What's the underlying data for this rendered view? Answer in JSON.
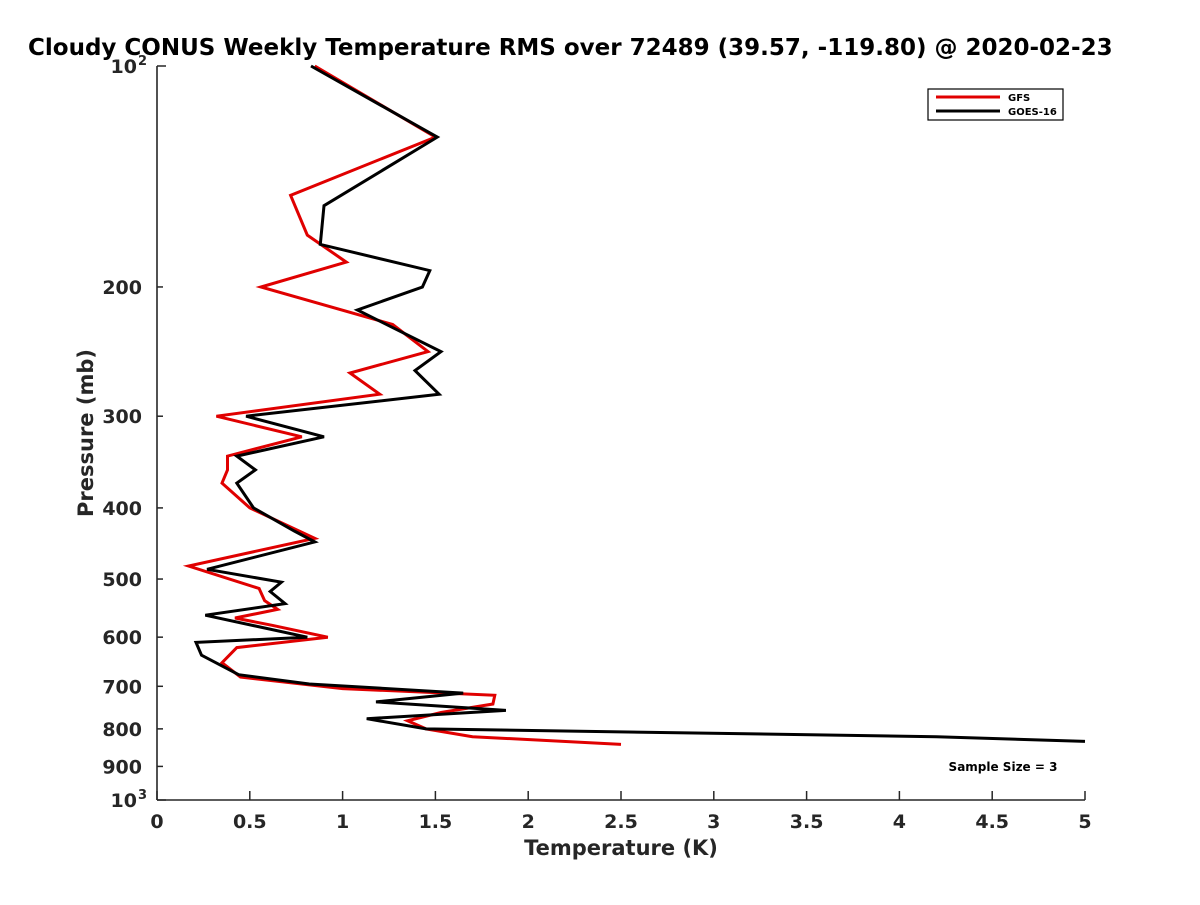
{
  "chart_data": {
    "type": "line",
    "title": "Cloudy CONUS Weekly Temperature RMS over 72489 (39.57, -119.80) @ 2020-02-23",
    "xlabel": "Temperature (K)",
    "ylabel": "Pressure (mb)",
    "xlim": [
      0,
      5
    ],
    "ylim": [
      100,
      1000
    ],
    "yscale": "log",
    "y_reversed": true,
    "grid": false,
    "legend_position": "top-right",
    "x_ticks": [
      "0",
      "0.5",
      "1",
      "1.5",
      "2",
      "2.5",
      "3",
      "3.5",
      "4",
      "4.5",
      "5"
    ],
    "y_ticks": [
      {
        "value": 100,
        "base": "10",
        "exp": "2"
      },
      {
        "value": 200,
        "label": "200"
      },
      {
        "value": 300,
        "label": "300"
      },
      {
        "value": 400,
        "label": "400"
      },
      {
        "value": 500,
        "label": "500"
      },
      {
        "value": 600,
        "label": "600"
      },
      {
        "value": 700,
        "label": "700"
      },
      {
        "value": 800,
        "label": "800"
      },
      {
        "value": 900,
        "label": "900"
      },
      {
        "value": 1000,
        "base": "10",
        "exp": "3"
      }
    ],
    "annotation": "Sample Size = 3",
    "series": [
      {
        "name": "GFS",
        "color": "#e00000",
        "points": [
          [
            0.85,
            100
          ],
          [
            1.5,
            125
          ],
          [
            0.72,
            150
          ],
          [
            0.81,
            170
          ],
          [
            1.02,
            185
          ],
          [
            0.56,
            200
          ],
          [
            1.27,
            225
          ],
          [
            1.46,
            245
          ],
          [
            1.04,
            262
          ],
          [
            1.2,
            280
          ],
          [
            0.32,
            300
          ],
          [
            0.78,
            320
          ],
          [
            0.38,
            340
          ],
          [
            0.38,
            355
          ],
          [
            0.35,
            370
          ],
          [
            0.5,
            400
          ],
          [
            0.85,
            440
          ],
          [
            0.17,
            480
          ],
          [
            0.55,
            515
          ],
          [
            0.58,
            535
          ],
          [
            0.65,
            550
          ],
          [
            0.42,
            565
          ],
          [
            0.62,
            578
          ],
          [
            0.92,
            600
          ],
          [
            0.43,
            620
          ],
          [
            0.35,
            650
          ],
          [
            0.45,
            680
          ],
          [
            1.0,
            705
          ],
          [
            1.82,
            720
          ],
          [
            1.81,
            740
          ],
          [
            1.53,
            760
          ],
          [
            1.35,
            780
          ],
          [
            1.45,
            800
          ],
          [
            1.7,
            820
          ],
          [
            2.5,
            840
          ]
        ]
      },
      {
        "name": "GOES-16",
        "color": "#000000",
        "points": [
          [
            0.83,
            100
          ],
          [
            1.51,
            125
          ],
          [
            0.9,
            155
          ],
          [
            0.88,
            175
          ],
          [
            1.47,
            190
          ],
          [
            1.43,
            200
          ],
          [
            1.08,
            215
          ],
          [
            1.53,
            245
          ],
          [
            1.39,
            260
          ],
          [
            1.52,
            280
          ],
          [
            0.48,
            300
          ],
          [
            0.9,
            320
          ],
          [
            0.43,
            340
          ],
          [
            0.53,
            355
          ],
          [
            0.43,
            370
          ],
          [
            0.52,
            400
          ],
          [
            0.74,
            430
          ],
          [
            0.85,
            445
          ],
          [
            0.27,
            485
          ],
          [
            0.67,
            505
          ],
          [
            0.61,
            520
          ],
          [
            0.69,
            540
          ],
          [
            0.26,
            560
          ],
          [
            0.81,
            600
          ],
          [
            0.21,
            610
          ],
          [
            0.24,
            635
          ],
          [
            0.44,
            675
          ],
          [
            0.82,
            695
          ],
          [
            1.65,
            715
          ],
          [
            1.18,
            735
          ],
          [
            1.88,
            755
          ],
          [
            1.13,
            775
          ],
          [
            1.45,
            800
          ],
          [
            4.2,
            820
          ],
          [
            5.0,
            832
          ]
        ]
      }
    ]
  }
}
